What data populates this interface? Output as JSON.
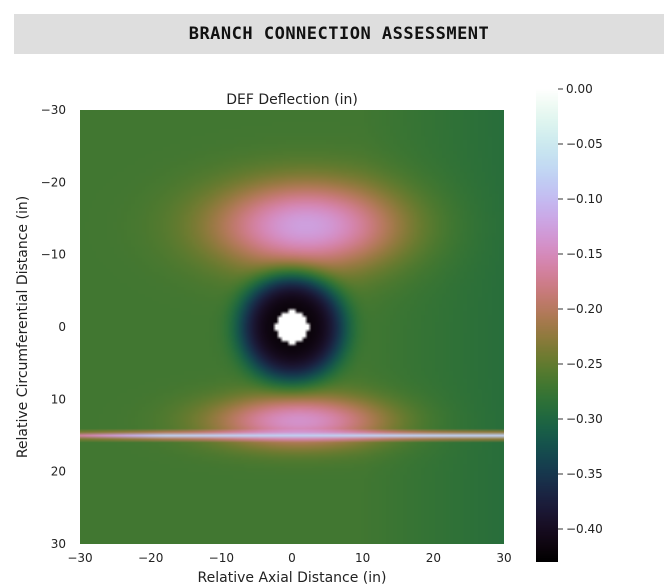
{
  "header": {
    "title": "BRANCH CONNECTION ASSESSMENT"
  },
  "chart_data": {
    "type": "heatmap",
    "title": "DEF Deflection (in)",
    "xlabel": "Relative Axial Distance (in)",
    "ylabel": "Relative Circumferential Distance (in)",
    "xlim": [
      -30,
      30
    ],
    "ylim": [
      -30,
      30
    ],
    "y_inverted": true,
    "xticks": [
      "−30",
      "−20",
      "−10",
      "0",
      "10",
      "20",
      "30"
    ],
    "xtick_values": [
      -30,
      -20,
      -10,
      0,
      10,
      20,
      30
    ],
    "yticks": [
      "−30",
      "−20",
      "−10",
      "0",
      "10",
      "20",
      "30"
    ],
    "ytick_values": [
      -30,
      -20,
      -10,
      0,
      10,
      20,
      30
    ],
    "colorbar": {
      "range": [
        -0.43,
        0.0
      ],
      "ticks": [
        "0.00",
        "−0.05",
        "−0.10",
        "−0.15",
        "−0.20",
        "−0.25",
        "−0.30",
        "−0.35",
        "−0.40"
      ],
      "tick_values": [
        0.0,
        -0.05,
        -0.1,
        -0.15,
        -0.2,
        -0.25,
        -0.3,
        -0.35,
        -0.4
      ],
      "colormap": "cubehelix"
    },
    "field": {
      "baseline": -0.27,
      "right_edge_value": -0.29,
      "hole": {
        "center": [
          0,
          0
        ],
        "radius_in": 2.3
      },
      "ring_min": {
        "center": [
          0,
          0
        ],
        "value": -0.42,
        "radius_in": 7.5
      },
      "lobes": [
        {
          "center": [
            2,
            -14
          ],
          "value": -0.125,
          "spread_x_in": 13,
          "spread_y_in": 6
        },
        {
          "center": [
            1,
            13
          ],
          "value": -0.14,
          "spread_x_in": 12,
          "spread_y_in": 3.5
        }
      ],
      "streak": {
        "y": 15,
        "x_range": [
          -30,
          30
        ],
        "value": -0.08
      }
    }
  }
}
